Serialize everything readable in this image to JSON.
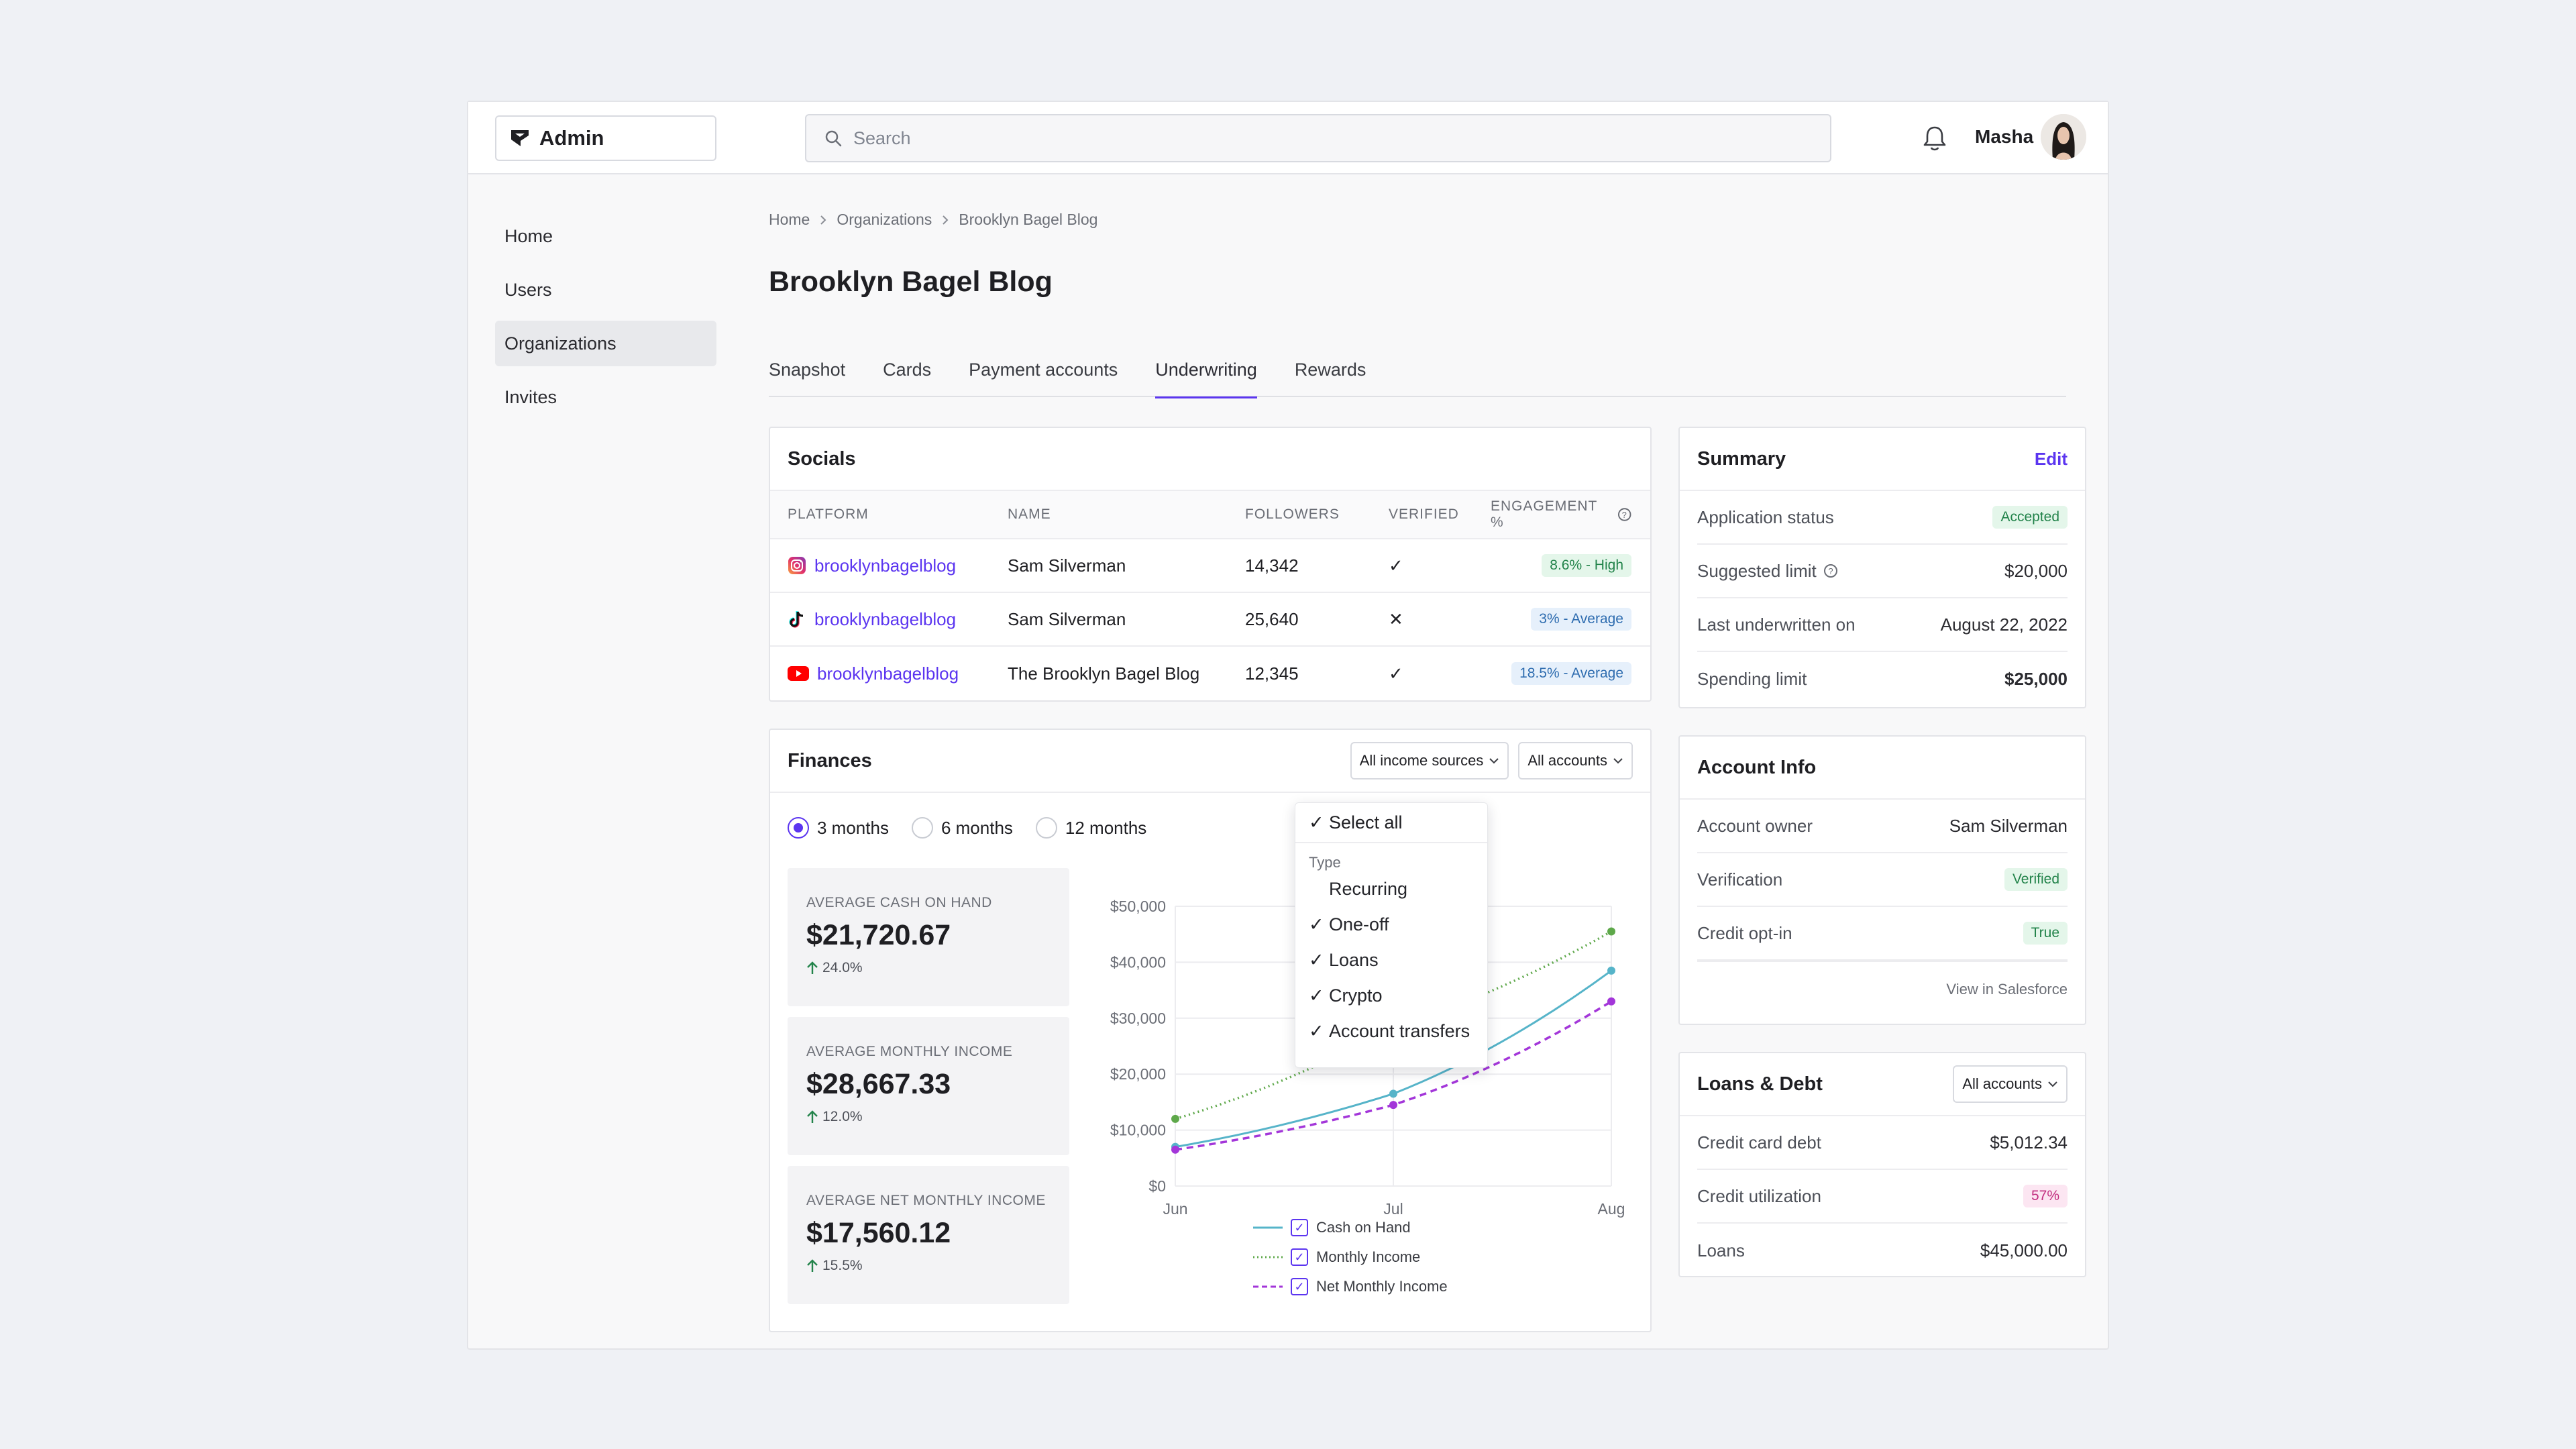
{
  "app": {
    "title": "Admin"
  },
  "search": {
    "placeholder": "Search"
  },
  "user": {
    "name": "Masha"
  },
  "sidebar": {
    "items": [
      {
        "label": "Home"
      },
      {
        "label": "Users"
      },
      {
        "label": "Organizations"
      },
      {
        "label": "Invites"
      }
    ],
    "active": "Organizations"
  },
  "breadcrumb": [
    "Home",
    "Organizations",
    "Brooklyn Bagel Blog"
  ],
  "page": {
    "title": "Brooklyn Bagel Blog"
  },
  "tabs": [
    {
      "label": "Snapshot"
    },
    {
      "label": "Cards"
    },
    {
      "label": "Payment accounts"
    },
    {
      "label": "Underwriting"
    },
    {
      "label": "Rewards"
    }
  ],
  "active_tab": "Underwriting",
  "socials": {
    "title": "Socials",
    "columns": [
      "PLATFORM",
      "NAME",
      "FOLLOWERS",
      "VERIFIED",
      "ENGAGEMENT %"
    ],
    "rows": [
      {
        "platform": "instagram",
        "handle": "brooklynbagelblog",
        "name": "Sam Silverman",
        "followers": "14,342",
        "verified": "✓",
        "engagement": "8.6% - High",
        "engagement_color": "green"
      },
      {
        "platform": "tiktok",
        "handle": "brooklynbagelblog",
        "name": "Sam Silverman",
        "followers": "25,640",
        "verified": "✕",
        "engagement": "3% - Average",
        "engagement_color": "blue"
      },
      {
        "platform": "youtube",
        "handle": "brooklynbagelblog",
        "name": "The Brooklyn Bagel Blog",
        "followers": "12,345",
        "verified": "✓",
        "engagement": "18.5% - Average",
        "engagement_color": "blue"
      }
    ]
  },
  "finances": {
    "title": "Finances",
    "income_filter": "All income sources",
    "accounts_filter": "All accounts",
    "periods": [
      {
        "label": "3 months",
        "selected": true
      },
      {
        "label": "6 months",
        "selected": false
      },
      {
        "label": "12 months",
        "selected": false
      }
    ],
    "metrics": [
      {
        "label": "AVERAGE CASH ON HAND",
        "value": "$21,720.67",
        "change": "24.0%"
      },
      {
        "label": "AVERAGE MONTHLY INCOME",
        "value": "$28,667.33",
        "change": "12.0%"
      },
      {
        "label": "AVERAGE NET MONTHLY INCOME",
        "value": "$17,560.12",
        "change": "15.5%"
      }
    ],
    "dropdown": {
      "select_all": "Select all",
      "type_header": "Type",
      "items": [
        {
          "label": "Recurring",
          "checked": false
        },
        {
          "label": "One-off",
          "checked": true
        },
        {
          "label": "Loans",
          "checked": true
        },
        {
          "label": "Crypto",
          "checked": true
        },
        {
          "label": "Account transfers",
          "checked": true
        }
      ]
    }
  },
  "chart_data": {
    "type": "line",
    "x": [
      "Jun",
      "Jul",
      "Aug"
    ],
    "yticks": [
      "$0",
      "$10,000",
      "$20,000",
      "$30,000",
      "$40,000",
      "$50,000"
    ],
    "ylim": [
      0,
      50000
    ],
    "series": [
      {
        "name": "Cash on Hand",
        "values": [
          7000,
          16500,
          38500
        ],
        "color": "#56b4c9",
        "dash": "solid"
      },
      {
        "name": "Monthly Income",
        "values": [
          12000,
          28500,
          45500
        ],
        "color": "#5ea84a",
        "dash": "dotted"
      },
      {
        "name": "Net Monthly Income",
        "values": [
          6500,
          14500,
          33000
        ],
        "color": "#a336d9",
        "dash": "dashed"
      }
    ]
  },
  "summary": {
    "title": "Summary",
    "edit": "Edit",
    "rows": [
      {
        "k": "Application status",
        "v": "Accepted",
        "pill": "green"
      },
      {
        "k": "Suggested limit",
        "v": "$20,000",
        "info": true
      },
      {
        "k": "Last underwritten on",
        "v": "August 22, 2022"
      },
      {
        "k": "Spending limit",
        "v": "$25,000",
        "bold": true
      }
    ]
  },
  "account_info": {
    "title": "Account Info",
    "rows": [
      {
        "k": "Account owner",
        "v": "Sam Silverman"
      },
      {
        "k": "Verification",
        "v": "Verified",
        "pill": "green"
      },
      {
        "k": "Credit opt-in",
        "v": "True",
        "pill": "green"
      }
    ],
    "salesforce": "View in Salesforce"
  },
  "loans": {
    "title": "Loans & Debt",
    "filter": "All accounts",
    "rows": [
      {
        "k": "Credit card debt",
        "v": "$5,012.34"
      },
      {
        "k": "Credit utilization",
        "v": "57%",
        "pill": "pink"
      },
      {
        "k": "Loans",
        "v": "$45,000.00"
      }
    ]
  },
  "colors": {
    "accent": "#5b35f0",
    "background": "#eff1f5"
  }
}
